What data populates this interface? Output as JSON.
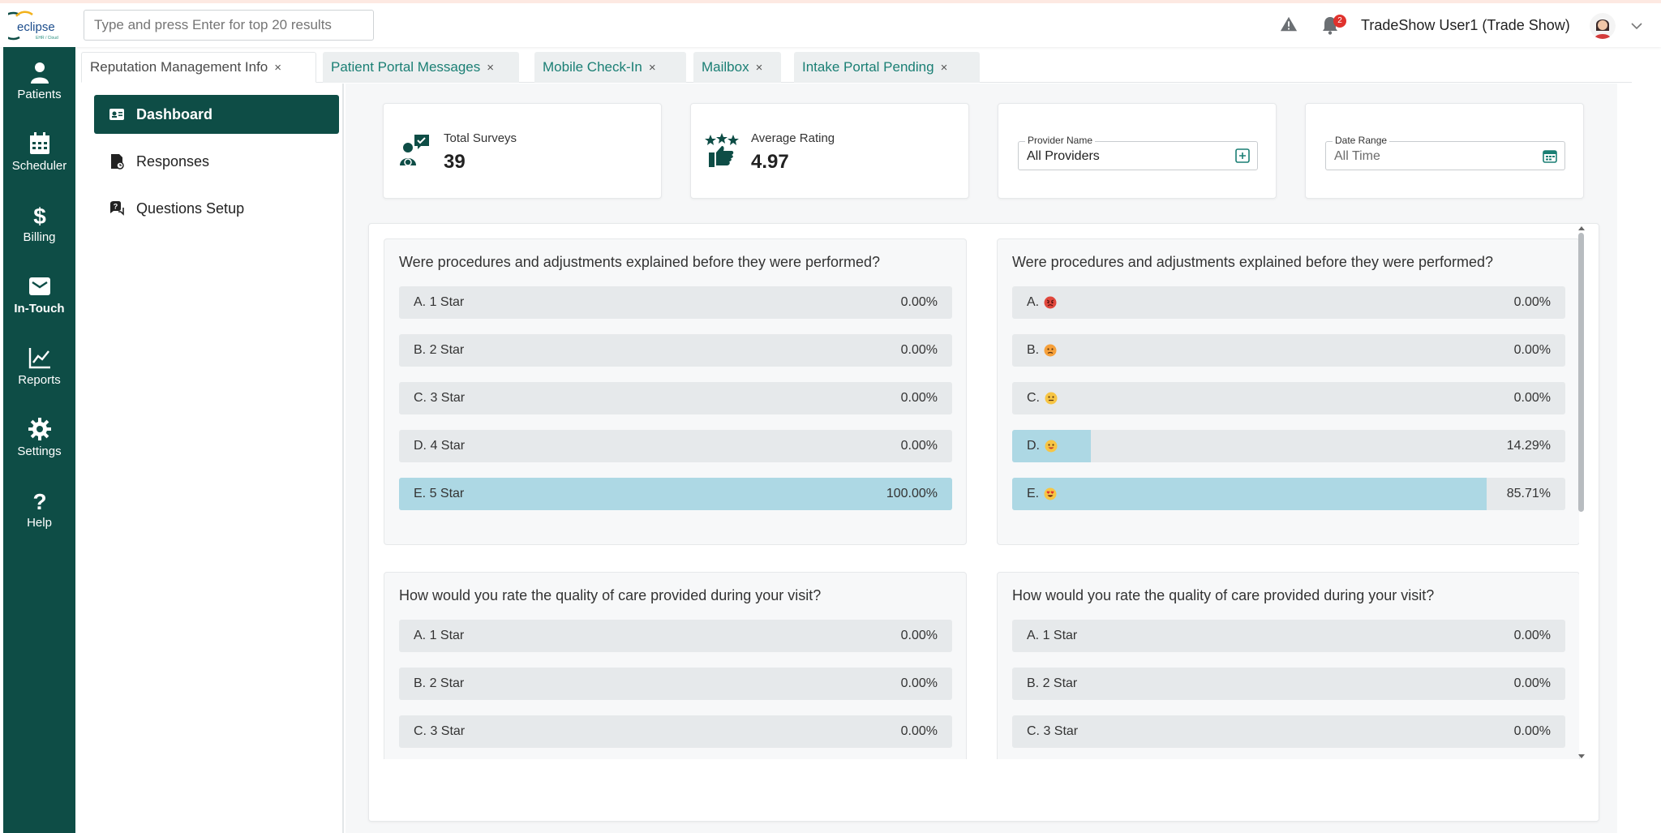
{
  "app": {
    "logo_text": "eclipse",
    "logo_sub": "EHR / Cloud",
    "search_placeholder": "Type and press Enter for top 20 results",
    "notification_count": "2",
    "user_name": "TradeShow User1 (Trade Show)"
  },
  "nav": [
    {
      "label": "Patients",
      "icon": "person-icon"
    },
    {
      "label": "Scheduler",
      "icon": "calendar-icon"
    },
    {
      "label": "Billing",
      "icon": "dollar-icon"
    },
    {
      "label": "In-Touch",
      "icon": "envelope-icon",
      "active": true
    },
    {
      "label": "Reports",
      "icon": "chart-line-icon"
    },
    {
      "label": "Settings",
      "icon": "gear-icon"
    },
    {
      "label": "Help",
      "icon": "question-icon"
    }
  ],
  "tabs": [
    {
      "label": "Reputation Management Info",
      "active": true
    },
    {
      "label": "Patient Portal Messages"
    },
    {
      "label": "Mobile Check-In"
    },
    {
      "label": "Mailbox"
    },
    {
      "label": "Intake Portal Pending"
    }
  ],
  "tab_close": "×",
  "submenu": [
    {
      "label": "Dashboard",
      "active": true
    },
    {
      "label": "Responses"
    },
    {
      "label": "Questions Setup"
    }
  ],
  "stats": {
    "total_surveys_label": "Total Surveys",
    "total_surveys_value": "39",
    "avg_rating_label": "Average Rating",
    "avg_rating_value": "4.97"
  },
  "filters": {
    "provider_label": "Provider Name",
    "provider_value": "All Providers",
    "date_label": "Date Range",
    "date_placeholder": "All Time"
  },
  "questions": [
    {
      "title": "Were procedures and adjustments explained before they were performed?",
      "options": [
        {
          "label": "A. 1 Star",
          "pct": "0.00%",
          "fill": 0
        },
        {
          "label": "B. 2 Star",
          "pct": "0.00%",
          "fill": 0
        },
        {
          "label": "C. 3 Star",
          "pct": "0.00%",
          "fill": 0
        },
        {
          "label": "D. 4 Star",
          "pct": "0.00%",
          "fill": 0
        },
        {
          "label": "E. 5 Star",
          "pct": "100.00%",
          "fill": 1
        }
      ]
    },
    {
      "title": "Were procedures and adjustments explained before they were performed?",
      "options": [
        {
          "label": "A.",
          "emoji": "angry-face-icon",
          "pct": "0.00%",
          "fill": 0
        },
        {
          "label": "B.",
          "emoji": "sad-face-icon",
          "pct": "0.00%",
          "fill": 0
        },
        {
          "label": "C.",
          "emoji": "neutral-face-icon",
          "pct": "0.00%",
          "fill": 0
        },
        {
          "label": "D.",
          "emoji": "happy-face-icon",
          "pct": "14.29%",
          "fill": 0.1429
        },
        {
          "label": "E.",
          "emoji": "heart-eyes-face-icon",
          "pct": "85.71%",
          "fill": 0.8571
        }
      ]
    },
    {
      "title": "How would you rate the quality of care provided during your visit?",
      "options": [
        {
          "label": "A. 1 Star",
          "pct": "0.00%",
          "fill": 0
        },
        {
          "label": "B. 2 Star",
          "pct": "0.00%",
          "fill": 0
        },
        {
          "label": "C. 3 Star",
          "pct": "0.00%",
          "fill": 0
        }
      ]
    },
    {
      "title": "How would you rate the quality of care provided during your visit?",
      "options": [
        {
          "label": "A. 1 Star",
          "pct": "0.00%",
          "fill": 0
        },
        {
          "label": "B. 2 Star",
          "pct": "0.00%",
          "fill": 0
        },
        {
          "label": "C. 3 Star",
          "pct": "0.00%",
          "fill": 0
        }
      ]
    }
  ],
  "colors": {
    "brand_green": "#0e4d46",
    "bar_fill": "#add8e4",
    "link_teal": "#1a7f74",
    "badge_red": "#e0322d"
  }
}
